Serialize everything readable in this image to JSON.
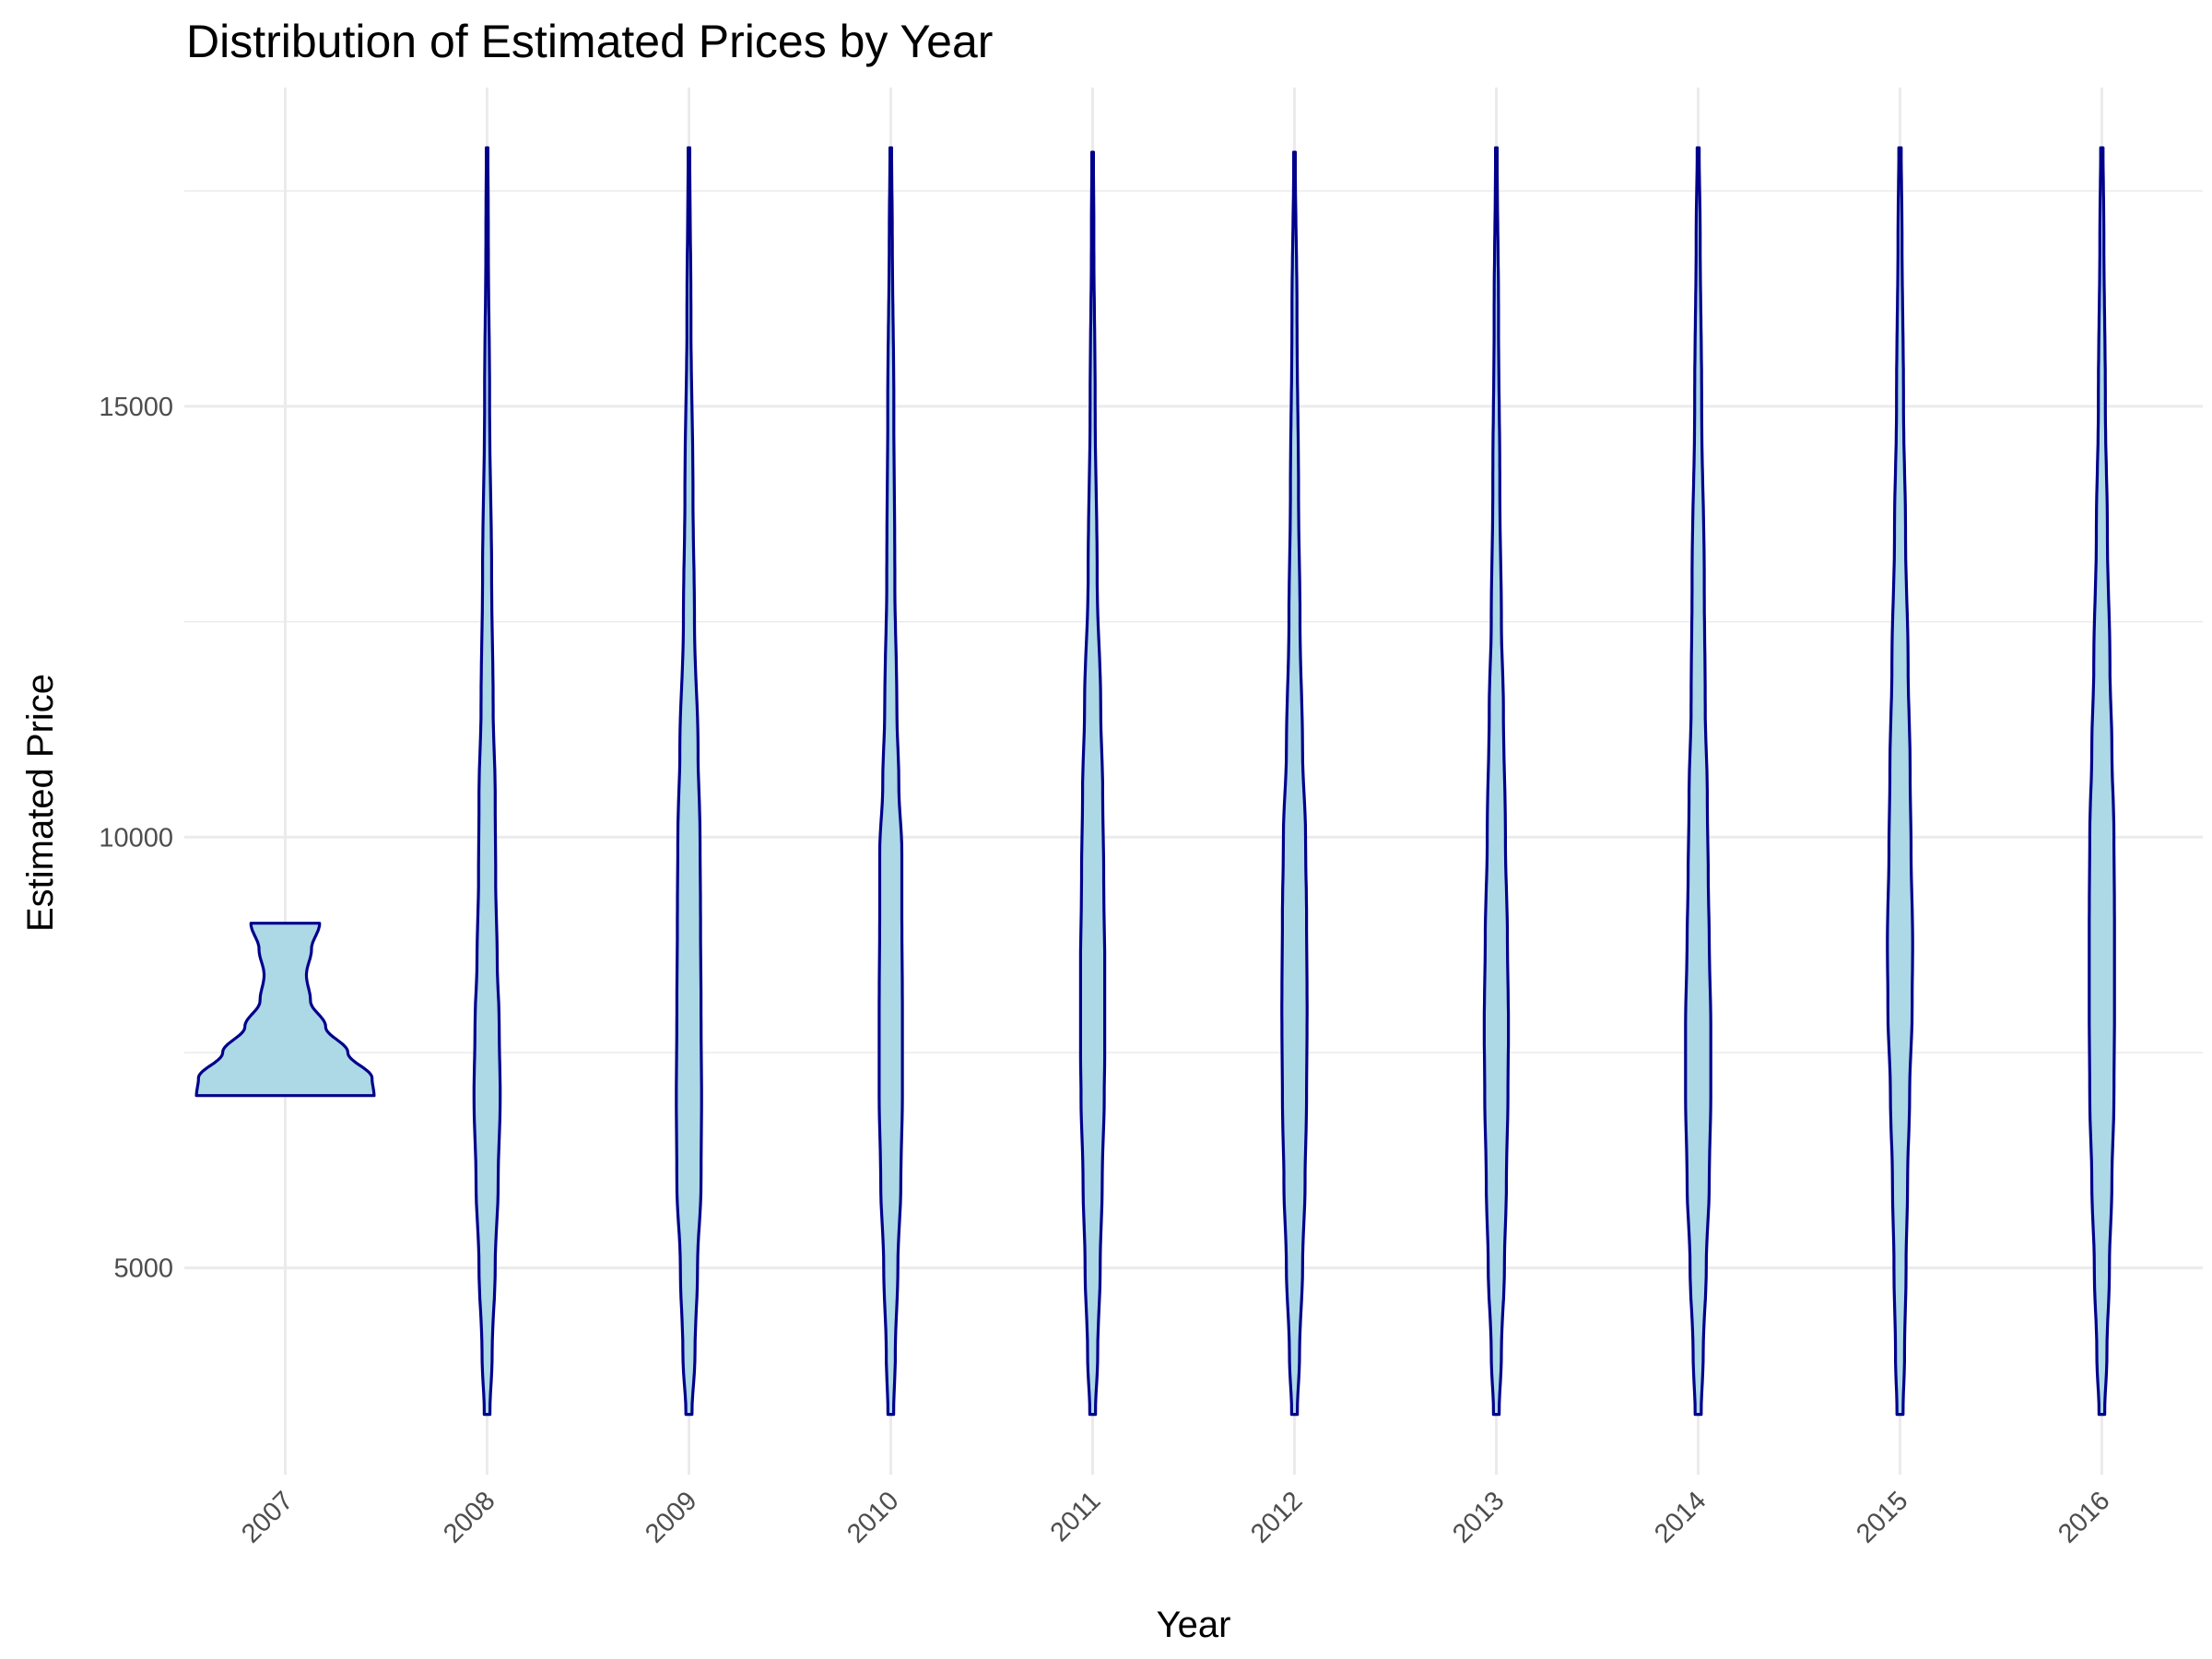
{
  "chart_data": {
    "type": "violin",
    "title": "Distribution of Estimated Prices by Year",
    "xlabel": "Year",
    "ylabel": "Estimated Price",
    "categories": [
      "2007",
      "2008",
      "2009",
      "2010",
      "2011",
      "2012",
      "2013",
      "2014",
      "2015",
      "2016"
    ],
    "y_ticks": [
      5000,
      10000,
      15000
    ],
    "y_tick_labels": [
      "5000",
      "10000",
      "15000"
    ],
    "ylim": [
      2600,
      18700
    ],
    "grid": true,
    "legend": "none",
    "fill_color": "#add8e6",
    "line_color": "#00008b",
    "series": [
      {
        "year": "2007",
        "min": 7000,
        "max": 9000,
        "profile": [
          [
            7000,
            0.88
          ],
          [
            7200,
            0.86
          ],
          [
            7500,
            0.62
          ],
          [
            7800,
            0.4
          ],
          [
            8100,
            0.25
          ],
          [
            8400,
            0.21
          ],
          [
            8700,
            0.26
          ],
          [
            9000,
            0.34
          ]
        ]
      },
      {
        "year": "2008",
        "min": 3300,
        "max": 18000,
        "profile": [
          [
            3300,
            0.028
          ],
          [
            4000,
            0.05
          ],
          [
            5000,
            0.08
          ],
          [
            6000,
            0.11
          ],
          [
            7000,
            0.13
          ],
          [
            7800,
            0.12
          ],
          [
            8600,
            0.1
          ],
          [
            9500,
            0.085
          ],
          [
            10500,
            0.08
          ],
          [
            11500,
            0.06
          ],
          [
            13000,
            0.045
          ],
          [
            15000,
            0.025
          ],
          [
            17000,
            0.012
          ],
          [
            18000,
            0.008
          ]
        ]
      },
      {
        "year": "2009",
        "min": 3300,
        "max": 18000,
        "profile": [
          [
            3300,
            0.03
          ],
          [
            4000,
            0.06
          ],
          [
            5000,
            0.085
          ],
          [
            6000,
            0.12
          ],
          [
            7000,
            0.125
          ],
          [
            8000,
            0.12
          ],
          [
            9000,
            0.115
          ],
          [
            10000,
            0.11
          ],
          [
            11000,
            0.09
          ],
          [
            12500,
            0.055
          ],
          [
            14000,
            0.04
          ],
          [
            16000,
            0.02
          ],
          [
            18000,
            0.008
          ]
        ]
      },
      {
        "year": "2010",
        "min": 3300,
        "max": 18000,
        "profile": [
          [
            3300,
            0.028
          ],
          [
            4000,
            0.045
          ],
          [
            5000,
            0.07
          ],
          [
            6000,
            0.1
          ],
          [
            7000,
            0.115
          ],
          [
            8000,
            0.115
          ],
          [
            9000,
            0.11
          ],
          [
            9800,
            0.11
          ],
          [
            10600,
            0.08
          ],
          [
            11500,
            0.06
          ],
          [
            13000,
            0.04
          ],
          [
            15000,
            0.03
          ],
          [
            17000,
            0.015
          ],
          [
            18000,
            0.008
          ]
        ]
      },
      {
        "year": "2011",
        "min": 3300,
        "max": 17950,
        "profile": [
          [
            3300,
            0.028
          ],
          [
            4000,
            0.05
          ],
          [
            5000,
            0.075
          ],
          [
            6000,
            0.095
          ],
          [
            7000,
            0.115
          ],
          [
            7500,
            0.12
          ],
          [
            8500,
            0.12
          ],
          [
            9500,
            0.11
          ],
          [
            10500,
            0.1
          ],
          [
            11500,
            0.08
          ],
          [
            13000,
            0.045
          ],
          [
            15000,
            0.025
          ],
          [
            17000,
            0.012
          ],
          [
            17950,
            0.008
          ]
        ]
      },
      {
        "year": "2012",
        "min": 3300,
        "max": 17950,
        "profile": [
          [
            3300,
            0.028
          ],
          [
            4000,
            0.05
          ],
          [
            5000,
            0.08
          ],
          [
            6000,
            0.105
          ],
          [
            7000,
            0.12
          ],
          [
            8000,
            0.125
          ],
          [
            9000,
            0.12
          ],
          [
            10000,
            0.11
          ],
          [
            11000,
            0.08
          ],
          [
            12500,
            0.055
          ],
          [
            14000,
            0.04
          ],
          [
            16000,
            0.025
          ],
          [
            17950,
            0.008
          ]
        ]
      },
      {
        "year": "2013",
        "min": 3300,
        "max": 18000,
        "profile": [
          [
            3300,
            0.028
          ],
          [
            4000,
            0.05
          ],
          [
            5000,
            0.08
          ],
          [
            6000,
            0.1
          ],
          [
            7000,
            0.115
          ],
          [
            7800,
            0.12
          ],
          [
            8800,
            0.11
          ],
          [
            10000,
            0.09
          ],
          [
            11500,
            0.07
          ],
          [
            12500,
            0.05
          ],
          [
            14000,
            0.035
          ],
          [
            16000,
            0.022
          ],
          [
            18000,
            0.008
          ]
        ]
      },
      {
        "year": "2014",
        "min": 3300,
        "max": 18000,
        "profile": [
          [
            3300,
            0.03
          ],
          [
            4000,
            0.05
          ],
          [
            5000,
            0.08
          ],
          [
            6000,
            0.11
          ],
          [
            7000,
            0.125
          ],
          [
            7800,
            0.125
          ],
          [
            8800,
            0.11
          ],
          [
            9500,
            0.1
          ],
          [
            10500,
            0.09
          ],
          [
            11500,
            0.07
          ],
          [
            13000,
            0.06
          ],
          [
            15000,
            0.035
          ],
          [
            17000,
            0.02
          ],
          [
            18000,
            0.01
          ]
        ]
      },
      {
        "year": "2015",
        "min": 3300,
        "max": 18000,
        "profile": [
          [
            3300,
            0.03
          ],
          [
            4000,
            0.045
          ],
          [
            5000,
            0.06
          ],
          [
            6000,
            0.075
          ],
          [
            7000,
            0.095
          ],
          [
            8000,
            0.12
          ],
          [
            8800,
            0.125
          ],
          [
            9800,
            0.11
          ],
          [
            10800,
            0.1
          ],
          [
            12000,
            0.08
          ],
          [
            13500,
            0.055
          ],
          [
            15000,
            0.035
          ],
          [
            17000,
            0.02
          ],
          [
            18000,
            0.012
          ]
        ]
      },
      {
        "year": "2016",
        "min": 3300,
        "max": 18000,
        "profile": [
          [
            3300,
            0.028
          ],
          [
            4000,
            0.05
          ],
          [
            5000,
            0.075
          ],
          [
            6000,
            0.1
          ],
          [
            7000,
            0.12
          ],
          [
            8000,
            0.125
          ],
          [
            9000,
            0.125
          ],
          [
            10000,
            0.12
          ],
          [
            11000,
            0.1
          ],
          [
            12000,
            0.08
          ],
          [
            13500,
            0.055
          ],
          [
            15000,
            0.035
          ],
          [
            17000,
            0.02
          ],
          [
            18000,
            0.012
          ]
        ]
      }
    ]
  }
}
